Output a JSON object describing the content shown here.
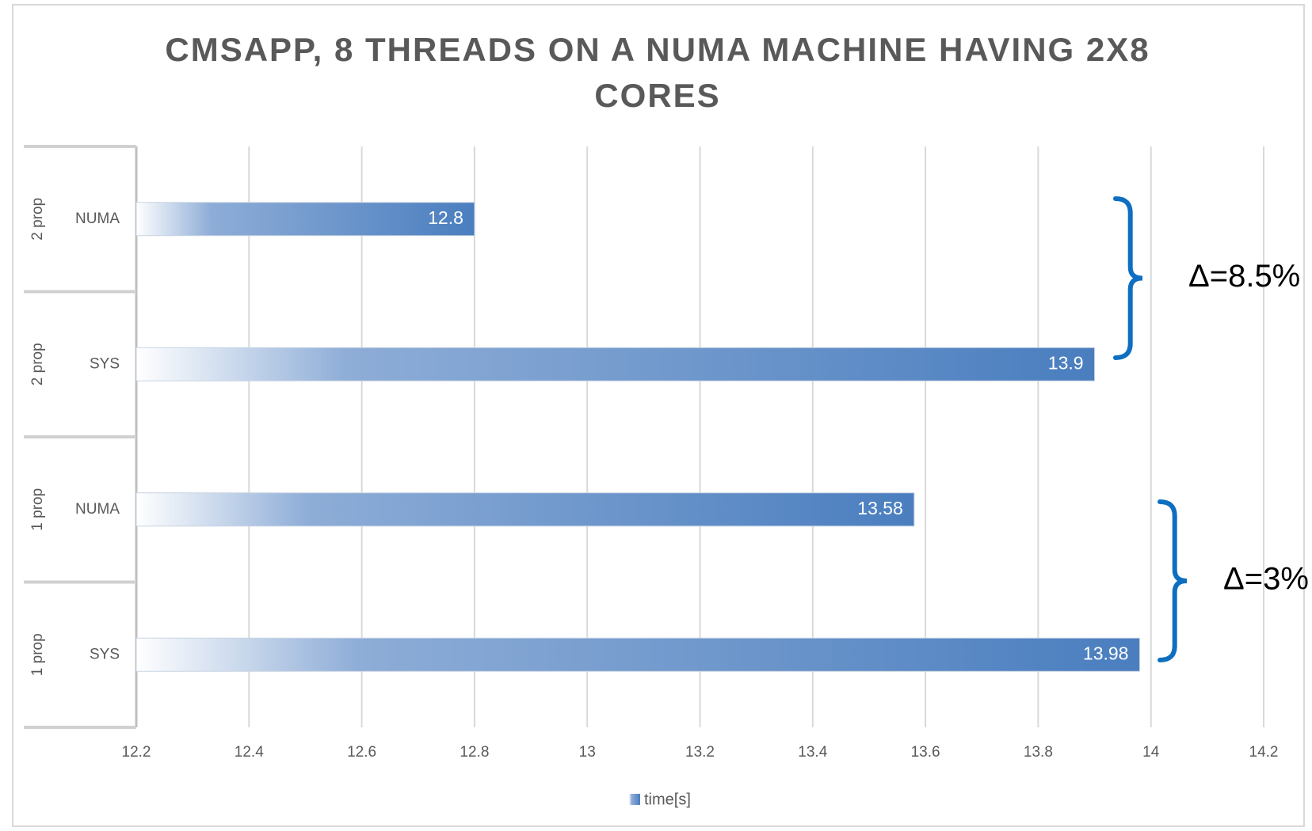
{
  "chart_data": {
    "type": "bar",
    "orientation": "horizontal",
    "title": "CMSAPP, 8 THREADS ON A NUMA MACHINE HAVING 2X8 CORES",
    "groups": [
      "2 prop",
      "2 prop",
      "1 prop",
      "1 prop"
    ],
    "categories": [
      "NUMA",
      "SYS",
      "NUMA",
      "SYS"
    ],
    "series": [
      {
        "name": "time[s]",
        "color": "#4a7ebf",
        "values": [
          12.8,
          13.9,
          13.58,
          13.98
        ]
      }
    ],
    "xlim": [
      12.2,
      14.2
    ],
    "xticks": [
      12.2,
      12.4,
      12.6,
      12.8,
      13,
      13.2,
      13.4,
      13.6,
      13.8,
      14,
      14.2
    ],
    "grid": true,
    "annotations": [
      "Δ=8.5%",
      "Δ=3%"
    ],
    "annotation_color": "#0e6fc1"
  }
}
